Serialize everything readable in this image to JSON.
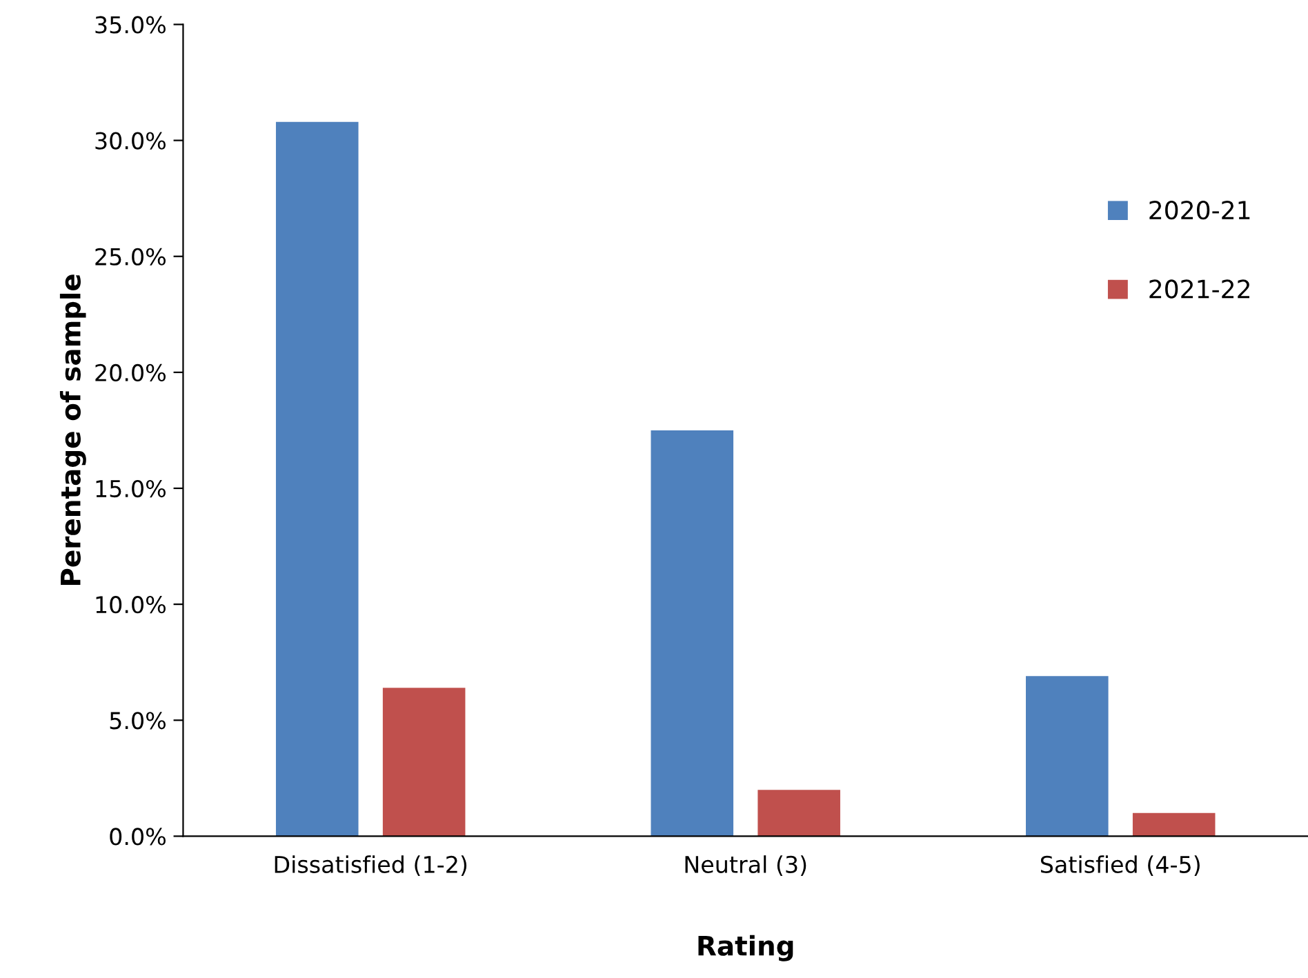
{
  "chart_data": {
    "type": "bar",
    "xlabel": "Rating",
    "ylabel": "Perentage of sample",
    "categories": [
      "Dissatisfied (1-2)",
      "Neutral (3)",
      "Satisfied (4-5)"
    ],
    "series": [
      {
        "name": "2020-21",
        "color": "#4f81bd",
        "values": [
          30.8,
          17.5,
          6.9
        ]
      },
      {
        "name": "2021-22",
        "color": "#c0504d",
        "values": [
          6.4,
          2.0,
          1.0
        ]
      }
    ],
    "ylim": [
      0,
      35
    ],
    "yticks": [
      {
        "value": 0,
        "label": "0.0%"
      },
      {
        "value": 5,
        "label": "5.0%"
      },
      {
        "value": 10,
        "label": "10.0%"
      },
      {
        "value": 15,
        "label": "15.0%"
      },
      {
        "value": 20,
        "label": "20.0%"
      },
      {
        "value": 25,
        "label": "25.0%"
      },
      {
        "value": 30,
        "label": "30.0%"
      },
      {
        "value": 35,
        "label": "35.0%"
      }
    ],
    "grid": false,
    "legend": "right"
  }
}
